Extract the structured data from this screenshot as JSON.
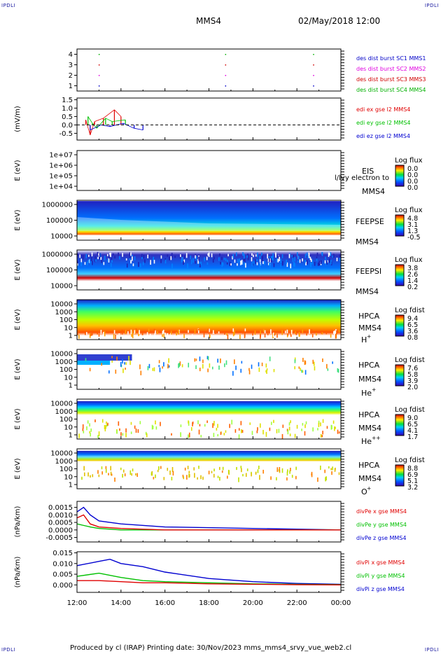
{
  "corners": {
    "tl": "IPDLI",
    "tr": "IPDLI",
    "bl": "IPDLI",
    "br": "IPDLI"
  },
  "header": {
    "mission": "MMS4",
    "datetime": "02/May/2018 12:00"
  },
  "footer": {
    "text": "Produced by cl (IRAP)   Printing date: 30/Nov/2023   mms_mms4_srvy_vue_web2.cl"
  },
  "colors": {
    "mms1": "#0000c8",
    "mms2": "#e000e0",
    "mms3": "#d00000",
    "mms4": "#00b000",
    "x": "#e00000",
    "y": "#00c000",
    "z": "#0000d0"
  },
  "x_axis": {
    "ticks": [
      "12:00",
      "14:00",
      "16:00",
      "18:00",
      "20:00",
      "22:00",
      "00:00"
    ]
  },
  "chart_data": [
    {
      "type": "scatter",
      "id": "burst",
      "yticks": [
        "4",
        "3",
        "2",
        "1"
      ],
      "ylim": [
        0.5,
        4.5
      ],
      "legend": [
        "des dist burst SC1 MMS1",
        "des dist burst SC2 MMS2",
        "des dist burst SC3 MMS3",
        "des dist burst SC4 MMS4"
      ],
      "series": [
        {
          "name": "des dist burst SC1 MMS1",
          "x": [
            13.0,
            18.75,
            22.75
          ],
          "y": [
            1,
            1,
            1
          ]
        },
        {
          "name": "des dist burst SC2 MMS2",
          "x": [
            13.0,
            18.75,
            22.75
          ],
          "y": [
            2,
            2,
            2
          ]
        },
        {
          "name": "des dist burst SC3 MMS3",
          "x": [
            13.0,
            18.75,
            22.75
          ],
          "y": [
            3,
            3,
            3
          ]
        },
        {
          "name": "des dist burst SC4 MMS4",
          "x": [
            13.0,
            18.75,
            22.75
          ],
          "y": [
            4,
            4,
            4
          ]
        }
      ]
    },
    {
      "type": "line",
      "id": "edi",
      "ylabel": "(mV/m)",
      "ylim": [
        -0.9,
        1.6
      ],
      "yticks": [
        "1.5",
        "1.0",
        "0.5",
        "0.0",
        "-0.5"
      ],
      "legend": [
        "edi ex gse l2 MMS4",
        "edi ey gse l2 MMS4",
        "edi ez gse l2 MMS4"
      ],
      "series": [
        {
          "name": "edi ex gse l2 MMS4",
          "x": [
            12.4,
            12.6,
            12.8,
            13.2,
            13.7,
            14.0
          ],
          "y": [
            0.3,
            -0.6,
            0.2,
            0.4,
            0.9,
            0.5
          ]
        },
        {
          "name": "edi ey gse l2 MMS4",
          "x": [
            12.5,
            12.7,
            12.9,
            13.3,
            13.6,
            14.2
          ],
          "y": [
            0.5,
            0.1,
            -0.2,
            0.4,
            0.2,
            0.3
          ]
        },
        {
          "name": "edi ez gse l2 MMS4",
          "x": [
            12.6,
            13.1,
            13.5,
            14.1,
            14.6,
            15.0
          ],
          "y": [
            -0.3,
            0.0,
            -0.1,
            0.1,
            -0.2,
            -0.3
          ]
        }
      ]
    },
    {
      "type": "heatmap",
      "id": "eis",
      "ylabel": "E (eV)",
      "yticks": [
        "1e+07",
        "1e+06",
        "1e+05",
        "1e+04"
      ],
      "side": [
        "EIS",
        "MMS4"
      ],
      "overlay": "l/lvy electron to",
      "cbar_title": "Log flux",
      "cbar_ticks": [
        "0.0",
        "0.0",
        "0.0",
        "0.0"
      ]
    },
    {
      "type": "heatmap",
      "id": "feepse",
      "ylabel": "E (eV)",
      "yticks": [
        "1000000",
        "100000",
        "10000"
      ],
      "side": [
        "FEEPSE",
        "MMS4"
      ],
      "cbar_title": "Log flux",
      "cbar_ticks": [
        "4.8",
        "3.1",
        "1.3",
        "-0.5"
      ]
    },
    {
      "type": "heatmap",
      "id": "feepsi",
      "ylabel": "E (eV)",
      "yticks": [
        "1000000",
        "100000",
        "10000"
      ],
      "side": [
        "FEEPSI",
        "MMS4"
      ],
      "cbar_title": "Log flux",
      "cbar_ticks": [
        "3.8",
        "2.6",
        "1.4",
        "0.2"
      ]
    },
    {
      "type": "heatmap",
      "id": "hpca_h",
      "ylabel": "E (eV)",
      "yticks": [
        "10000",
        "1000",
        "100",
        "10",
        "1"
      ],
      "side": [
        "HPCA",
        "MMS4"
      ],
      "species": "H",
      "charge": "+",
      "cbar_title": "Log fdist",
      "cbar_ticks": [
        "9.4",
        "6.5",
        "3.6",
        "0.8"
      ]
    },
    {
      "type": "heatmap",
      "id": "hpca_he",
      "ylabel": "E (eV)",
      "yticks": [
        "10000",
        "1000",
        "100",
        "10",
        "1"
      ],
      "side": [
        "HPCA",
        "MMS4"
      ],
      "species": "He",
      "charge": "+",
      "cbar_title": "Log fdist",
      "cbar_ticks": [
        "7.6",
        "5.8",
        "3.9",
        "2.0"
      ]
    },
    {
      "type": "heatmap",
      "id": "hpca_he2",
      "ylabel": "E (eV)",
      "yticks": [
        "10000",
        "1000",
        "100",
        "10",
        "1"
      ],
      "side": [
        "HPCA",
        "MMS4"
      ],
      "species": "He",
      "charge": "++",
      "cbar_title": "Log fdist",
      "cbar_ticks": [
        "9.0",
        "6.5",
        "4.1",
        "1.7"
      ]
    },
    {
      "type": "heatmap",
      "id": "hpca_o",
      "ylabel": "E (eV)",
      "yticks": [
        "10000",
        "1000",
        "100",
        "10",
        "1"
      ],
      "side": [
        "HPCA",
        "MMS4"
      ],
      "species": "O",
      "charge": "+",
      "cbar_title": "Log fdist",
      "cbar_ticks": [
        "8.8",
        "6.9",
        "5.1",
        "3.2"
      ]
    },
    {
      "type": "line",
      "id": "divpe",
      "ylabel": "(nPa/km)",
      "ylim": [
        -0.0008,
        0.0019
      ],
      "yticks": [
        "0.0015",
        "0.0010",
        "0.0005",
        "0.0000",
        "-0.0005"
      ],
      "legend": [
        "divPe x gse MMS4",
        "divPe y gse MMS4",
        "divPe z gse MMS4"
      ],
      "series": [
        {
          "name": "divPe x gse MMS4",
          "x": [
            12.0,
            12.3,
            12.6,
            13.0,
            14.0,
            16.0,
            20.0,
            24.0
          ],
          "y": [
            0.0008,
            0.001,
            0.0004,
            0.0002,
            0.0001,
            0.0,
            0.0,
            0.0
          ]
        },
        {
          "name": "divPe y gse MMS4",
          "x": [
            12.0,
            12.3,
            12.6,
            13.0,
            14.0,
            16.0,
            20.0,
            24.0
          ],
          "y": [
            0.0004,
            0.0003,
            0.0002,
            0.0001,
            0.0,
            0.0,
            0.0,
            0.0
          ]
        },
        {
          "name": "divPe z gse MMS4",
          "x": [
            12.0,
            12.3,
            12.6,
            13.0,
            14.0,
            16.0,
            20.0,
            24.0
          ],
          "y": [
            0.0012,
            0.0015,
            0.001,
            0.0006,
            0.0004,
            0.0002,
            0.0001,
            0.0
          ]
        }
      ]
    },
    {
      "type": "line",
      "id": "divpi",
      "ylabel": "(nPa/km)",
      "ylim": [
        -0.0035,
        0.0155
      ],
      "yticks": [
        "0.015",
        "0.010",
        "0.005",
        "0.000"
      ],
      "legend": [
        "divPi x gse MMS4",
        "divPi y gse MMS4",
        "divPi z gse MMS4"
      ],
      "series": [
        {
          "name": "divPi x gse MMS4",
          "x": [
            12.0,
            13.0,
            14.0,
            15.0,
            16.0,
            18.0,
            20.0,
            22.0,
            24.0
          ],
          "y": [
            0.002,
            0.002,
            0.0015,
            0.001,
            0.001,
            0.0005,
            0.0003,
            0.0001,
            0.0
          ]
        },
        {
          "name": "divPi y gse MMS4",
          "x": [
            12.0,
            13.0,
            14.0,
            15.0,
            16.0,
            18.0,
            20.0,
            22.0,
            24.0
          ],
          "y": [
            0.004,
            0.0055,
            0.0035,
            0.002,
            0.0015,
            0.001,
            0.0005,
            0.0003,
            0.0001
          ]
        },
        {
          "name": "divPi z gse MMS4",
          "x": [
            12.0,
            13.0,
            13.5,
            14.0,
            15.0,
            16.0,
            18.0,
            20.0,
            22.0,
            24.0
          ],
          "y": [
            0.009,
            0.011,
            0.012,
            0.01,
            0.0085,
            0.006,
            0.003,
            0.0015,
            0.0007,
            0.0003
          ]
        }
      ]
    }
  ]
}
